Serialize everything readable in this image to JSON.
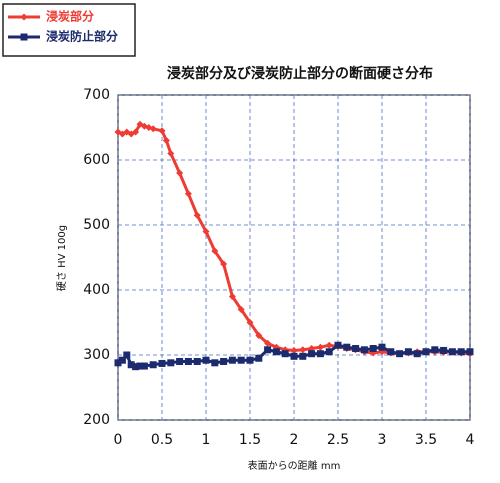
{
  "chart_data": {
    "type": "line",
    "title": "浸炭部分及び浸炭防止部分の断面硬さ分布",
    "xlabel": "表面からの距離 mm",
    "ylabel": "硬さ HV 100g",
    "xlim": [
      0,
      4
    ],
    "xticks": [
      0,
      0.5,
      1,
      1.5,
      2,
      2.5,
      3,
      3.5,
      4
    ],
    "ylim": [
      200,
      700
    ],
    "yticks": [
      200,
      300,
      400,
      500,
      600,
      700
    ],
    "grid": true,
    "legend": "top-left",
    "series": [
      {
        "name": "浸炭部分",
        "color": "#ee3b33",
        "marker": "diamond",
        "x": [
          0,
          0.05,
          0.1,
          0.15,
          0.2,
          0.25,
          0.3,
          0.35,
          0.4,
          0.5,
          0.55,
          0.6,
          0.7,
          0.8,
          0.9,
          1.0,
          1.1,
          1.2,
          1.3,
          1.4,
          1.5,
          1.6,
          1.7,
          1.8,
          1.9,
          2.0,
          2.1,
          2.2,
          2.3,
          2.4,
          2.5,
          2.6,
          2.7,
          2.8,
          2.9,
          3.0,
          3.1,
          3.2,
          3.3,
          3.4,
          3.5,
          3.6,
          3.7,
          3.8,
          3.9,
          4.0
        ],
        "values": [
          643,
          640,
          643,
          640,
          643,
          655,
          652,
          650,
          648,
          645,
          630,
          610,
          580,
          548,
          515,
          490,
          460,
          440,
          390,
          370,
          350,
          330,
          318,
          312,
          308,
          307,
          308,
          310,
          312,
          315,
          313,
          310,
          308,
          305,
          303,
          305,
          303,
          302,
          303,
          305,
          305,
          305,
          304,
          305,
          303,
          302
        ]
      },
      {
        "name": "浸炭防止部分",
        "color": "#1c2a6e",
        "marker": "square",
        "x": [
          0,
          0.05,
          0.1,
          0.15,
          0.2,
          0.25,
          0.3,
          0.4,
          0.5,
          0.6,
          0.7,
          0.8,
          0.9,
          1.0,
          1.1,
          1.2,
          1.3,
          1.4,
          1.5,
          1.6,
          1.7,
          1.8,
          1.9,
          2.0,
          2.1,
          2.2,
          2.3,
          2.4,
          2.5,
          2.6,
          2.7,
          2.8,
          2.9,
          3.0,
          3.1,
          3.2,
          3.3,
          3.4,
          3.5,
          3.6,
          3.7,
          3.8,
          3.9,
          4.0
        ],
        "values": [
          288,
          292,
          300,
          285,
          282,
          283,
          283,
          285,
          287,
          288,
          290,
          290,
          290,
          292,
          288,
          290,
          292,
          292,
          292,
          295,
          308,
          305,
          302,
          298,
          298,
          302,
          302,
          305,
          315,
          312,
          310,
          308,
          310,
          312,
          305,
          302,
          305,
          302,
          305,
          308,
          307,
          305,
          305,
          305
        ]
      }
    ]
  }
}
